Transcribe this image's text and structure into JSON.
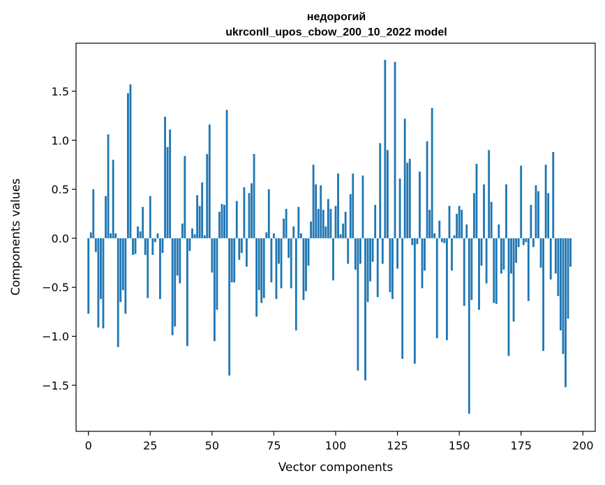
{
  "chart_data": {
    "type": "bar",
    "title_line1": "недорогий",
    "title_line2": "ukrconll_upos_cbow_200_10_2022 model",
    "xlabel": "Vector components",
    "ylabel": "Components values",
    "xlim": [
      -5,
      205
    ],
    "ylim": [
      -1.97,
      1.99
    ],
    "xticks": [
      0,
      25,
      50,
      75,
      100,
      125,
      150,
      175,
      200
    ],
    "yticks": [
      -1.5,
      -1.0,
      -0.5,
      0.0,
      0.5,
      1.0,
      1.5
    ],
    "ytick_labels": [
      "−1.5",
      "−1.0",
      "−0.5",
      "0.0",
      "0.5",
      "1.0",
      "1.5"
    ],
    "bar_color": "#1f77b4",
    "grid": false,
    "values": [
      -0.77,
      0.06,
      0.5,
      -0.14,
      -0.91,
      -0.62,
      -0.92,
      0.43,
      1.06,
      0.05,
      0.8,
      0.05,
      -1.11,
      -0.65,
      -0.53,
      -0.77,
      1.48,
      1.57,
      -0.17,
      -0.16,
      0.12,
      0.07,
      0.32,
      -0.17,
      -0.61,
      0.43,
      -0.17,
      -0.04,
      0.05,
      -0.62,
      -0.15,
      1.24,
      0.93,
      1.11,
      -0.99,
      -0.9,
      -0.38,
      -0.46,
      0.15,
      0.84,
      -1.1,
      -0.13,
      0.1,
      0.04,
      0.44,
      0.33,
      0.57,
      0.03,
      0.86,
      1.16,
      -0.35,
      -1.05,
      -0.73,
      0.27,
      0.35,
      0.34,
      1.31,
      -1.4,
      -0.45,
      -0.45,
      0.38,
      -0.22,
      -0.15,
      0.52,
      -0.29,
      0.46,
      0.56,
      0.86,
      -0.8,
      -0.53,
      -0.66,
      -0.61,
      0.06,
      0.5,
      -0.45,
      0.05,
      -0.62,
      -0.26,
      -0.51,
      0.2,
      0.3,
      -0.2,
      -0.51,
      0.12,
      -0.94,
      0.32,
      0.05,
      -0.63,
      -0.54,
      -0.28,
      0.17,
      0.75,
      0.55,
      0.3,
      0.54,
      0.29,
      0.12,
      0.4,
      0.3,
      -0.43,
      0.33,
      0.66,
      0.04,
      0.15,
      0.27,
      -0.26,
      0.45,
      0.66,
      -0.32,
      -1.35,
      -0.26,
      0.64,
      -1.45,
      -0.65,
      -0.44,
      -0.24,
      0.34,
      -0.6,
      0.97,
      -0.26,
      1.82,
      0.9,
      -0.55,
      -0.62,
      1.8,
      -0.31,
      0.61,
      -1.23,
      1.22,
      0.77,
      0.81,
      -0.07,
      -1.28,
      -0.06,
      0.68,
      -0.51,
      -0.33,
      0.99,
      0.29,
      1.33,
      0.05,
      -1.02,
      0.18,
      -0.04,
      -0.05,
      -1.04,
      0.33,
      -0.33,
      0.03,
      0.25,
      0.33,
      0.29,
      -0.69,
      0.14,
      -1.79,
      -0.63,
      0.46,
      0.76,
      -0.73,
      -0.28,
      0.55,
      -0.46,
      0.9,
      0.37,
      -0.66,
      -0.67,
      0.14,
      -0.36,
      -0.32,
      0.55,
      -1.2,
      -0.36,
      -0.85,
      -0.25,
      -0.09,
      0.74,
      -0.07,
      -0.04,
      -0.64,
      0.34,
      -0.09,
      0.54,
      0.48,
      -0.3,
      -1.15,
      0.75,
      0.46,
      -0.42,
      0.88,
      -0.36,
      -0.59,
      -0.94,
      -1.18,
      -1.52,
      -0.82,
      -0.29
    ]
  }
}
